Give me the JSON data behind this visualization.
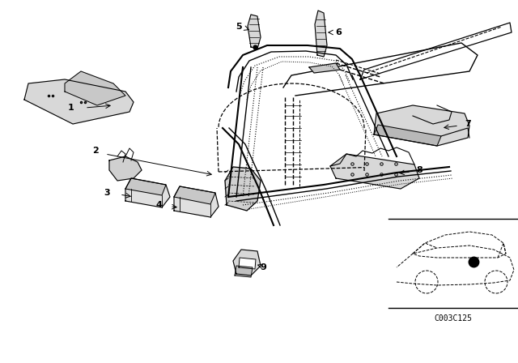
{
  "background_color": "#ffffff",
  "line_color": "#000000",
  "fig_width": 6.4,
  "fig_height": 4.48,
  "dpi": 100,
  "watermark": "C003C125"
}
